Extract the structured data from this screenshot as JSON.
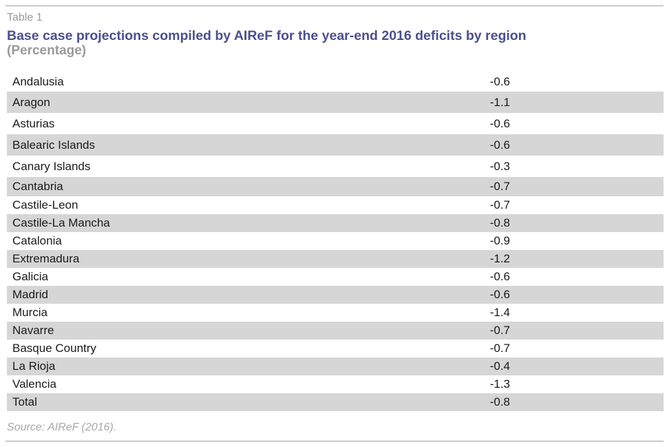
{
  "header": {
    "table_label": "Table 1",
    "title": "Base case projections compiled by AIReF for the year-end 2016 deficits by region",
    "subtitle": "(Percentage)"
  },
  "chart_data": {
    "type": "table",
    "columns": [
      "",
      ""
    ],
    "rows": [
      {
        "region": "Andalusia",
        "value": "-0.6"
      },
      {
        "region": "Aragon",
        "value": "-1.1"
      },
      {
        "region": "Asturias",
        "value": "-0.6"
      },
      {
        "region": "Balearic Islands",
        "value": "-0.6"
      },
      {
        "region": "Canary Islands",
        "value": "-0.3"
      },
      {
        "region": "Cantabria",
        "value": "-0.7"
      },
      {
        "region": "Castile-Leon",
        "value": "-0.7"
      },
      {
        "region": "Castile-La Mancha",
        "value": "-0.8"
      },
      {
        "region": "Catalonia",
        "value": "-0.9"
      },
      {
        "region": "Extremadura",
        "value": "-1.2"
      },
      {
        "region": "Galicia",
        "value": "-0.6"
      },
      {
        "region": "Madrid",
        "value": "-0.6"
      },
      {
        "region": "Murcia",
        "value": "-1.4"
      },
      {
        "region": "Navarre",
        "value": "-0.7"
      },
      {
        "region": "Basque Country",
        "value": "-0.7"
      },
      {
        "region": "La Rioja",
        "value": "-0.4"
      },
      {
        "region": "Valencia",
        "value": "-1.3"
      },
      {
        "region": "Total",
        "value": "-0.8"
      }
    ]
  },
  "footer": {
    "source": "Source: AIReF (2016)."
  },
  "colors": {
    "title": "#4b4f8f",
    "muted": "#9a9a9a",
    "row_shade": "#d6d6d6"
  }
}
